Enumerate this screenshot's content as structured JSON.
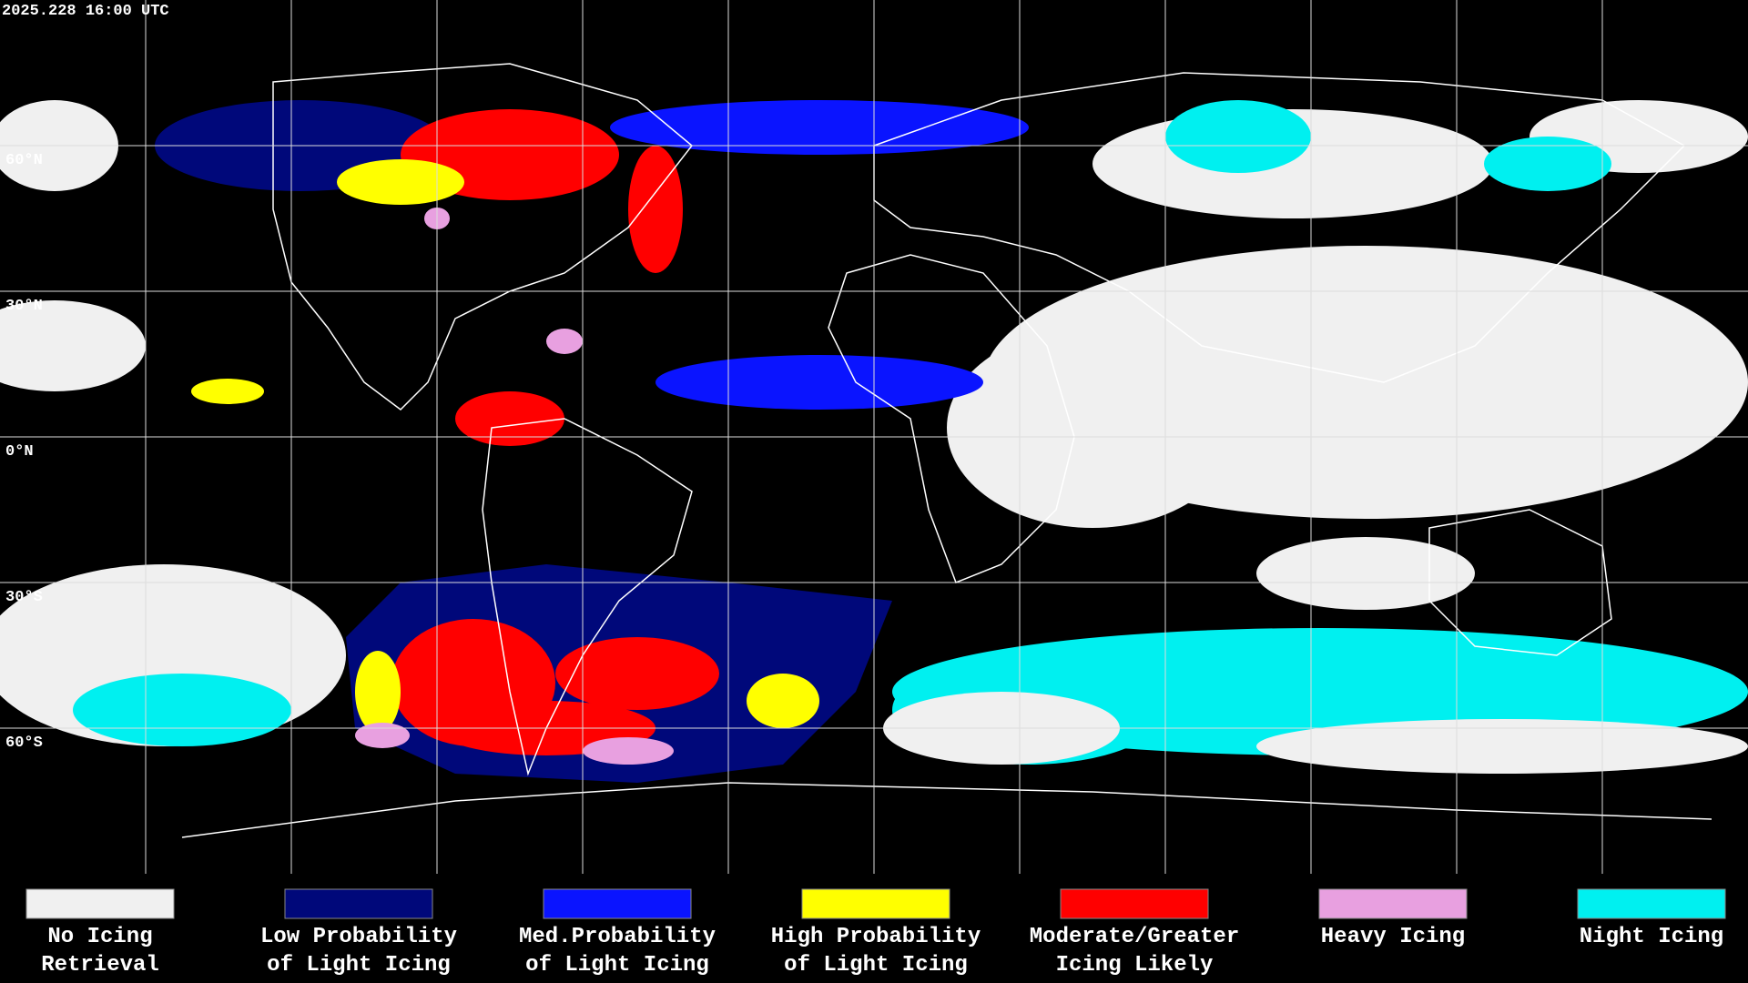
{
  "header": {
    "title": "2025.228 16:00 UTC"
  },
  "map": {
    "lat_labels": [
      "60°N",
      "30°N",
      "0°N",
      "30°S",
      "60°S"
    ]
  },
  "legend": {
    "items": [
      {
        "label": [
          "No Icing",
          "Retrieval"
        ],
        "color": "#f0f0f0"
      },
      {
        "label": [
          "Low Probability",
          "of Light Icing"
        ],
        "color": "#00087a"
      },
      {
        "label": [
          "Med.Probability",
          "of Light Icing"
        ],
        "color": "#0a14ff"
      },
      {
        "label": [
          "High Probability",
          "of Light Icing"
        ],
        "color": "#ffff00"
      },
      {
        "label": [
          "Moderate/Greater",
          "Icing Likely"
        ],
        "color": "#ff0000"
      },
      {
        "label": [
          "Heavy Icing"
        ],
        "color": "#e8a0e0"
      },
      {
        "label": [
          "Night Icing"
        ],
        "color": "#00f0f0"
      }
    ]
  }
}
